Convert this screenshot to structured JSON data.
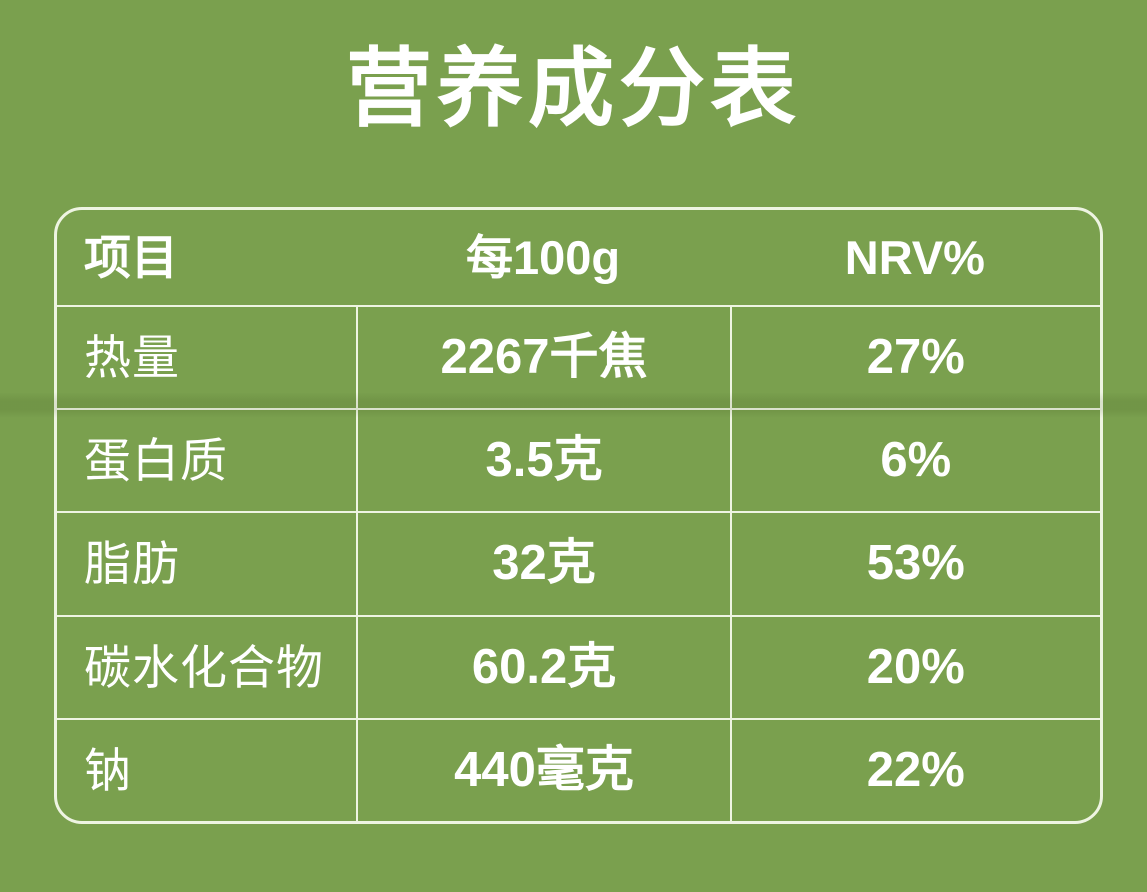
{
  "page": {
    "background_color": "#7aa04e",
    "line_color": "#eef4e2",
    "text_color": "#ffffff"
  },
  "title": "营养成分表",
  "table": {
    "headers": {
      "item": "项目",
      "per_100g": "每100g",
      "nrv": "NRV%"
    },
    "rows": [
      {
        "item": "热量",
        "per_100g": "2267千焦",
        "nrv": "27%"
      },
      {
        "item": "蛋白质",
        "per_100g": "3.5克",
        "nrv": "6%"
      },
      {
        "item": "脂肪",
        "per_100g": "32克",
        "nrv": "53%"
      },
      {
        "item": "碳水化合物",
        "per_100g": "60.2克",
        "nrv": "20%"
      },
      {
        "item": "钠",
        "per_100g": "440毫克",
        "nrv": "22%"
      }
    ]
  }
}
